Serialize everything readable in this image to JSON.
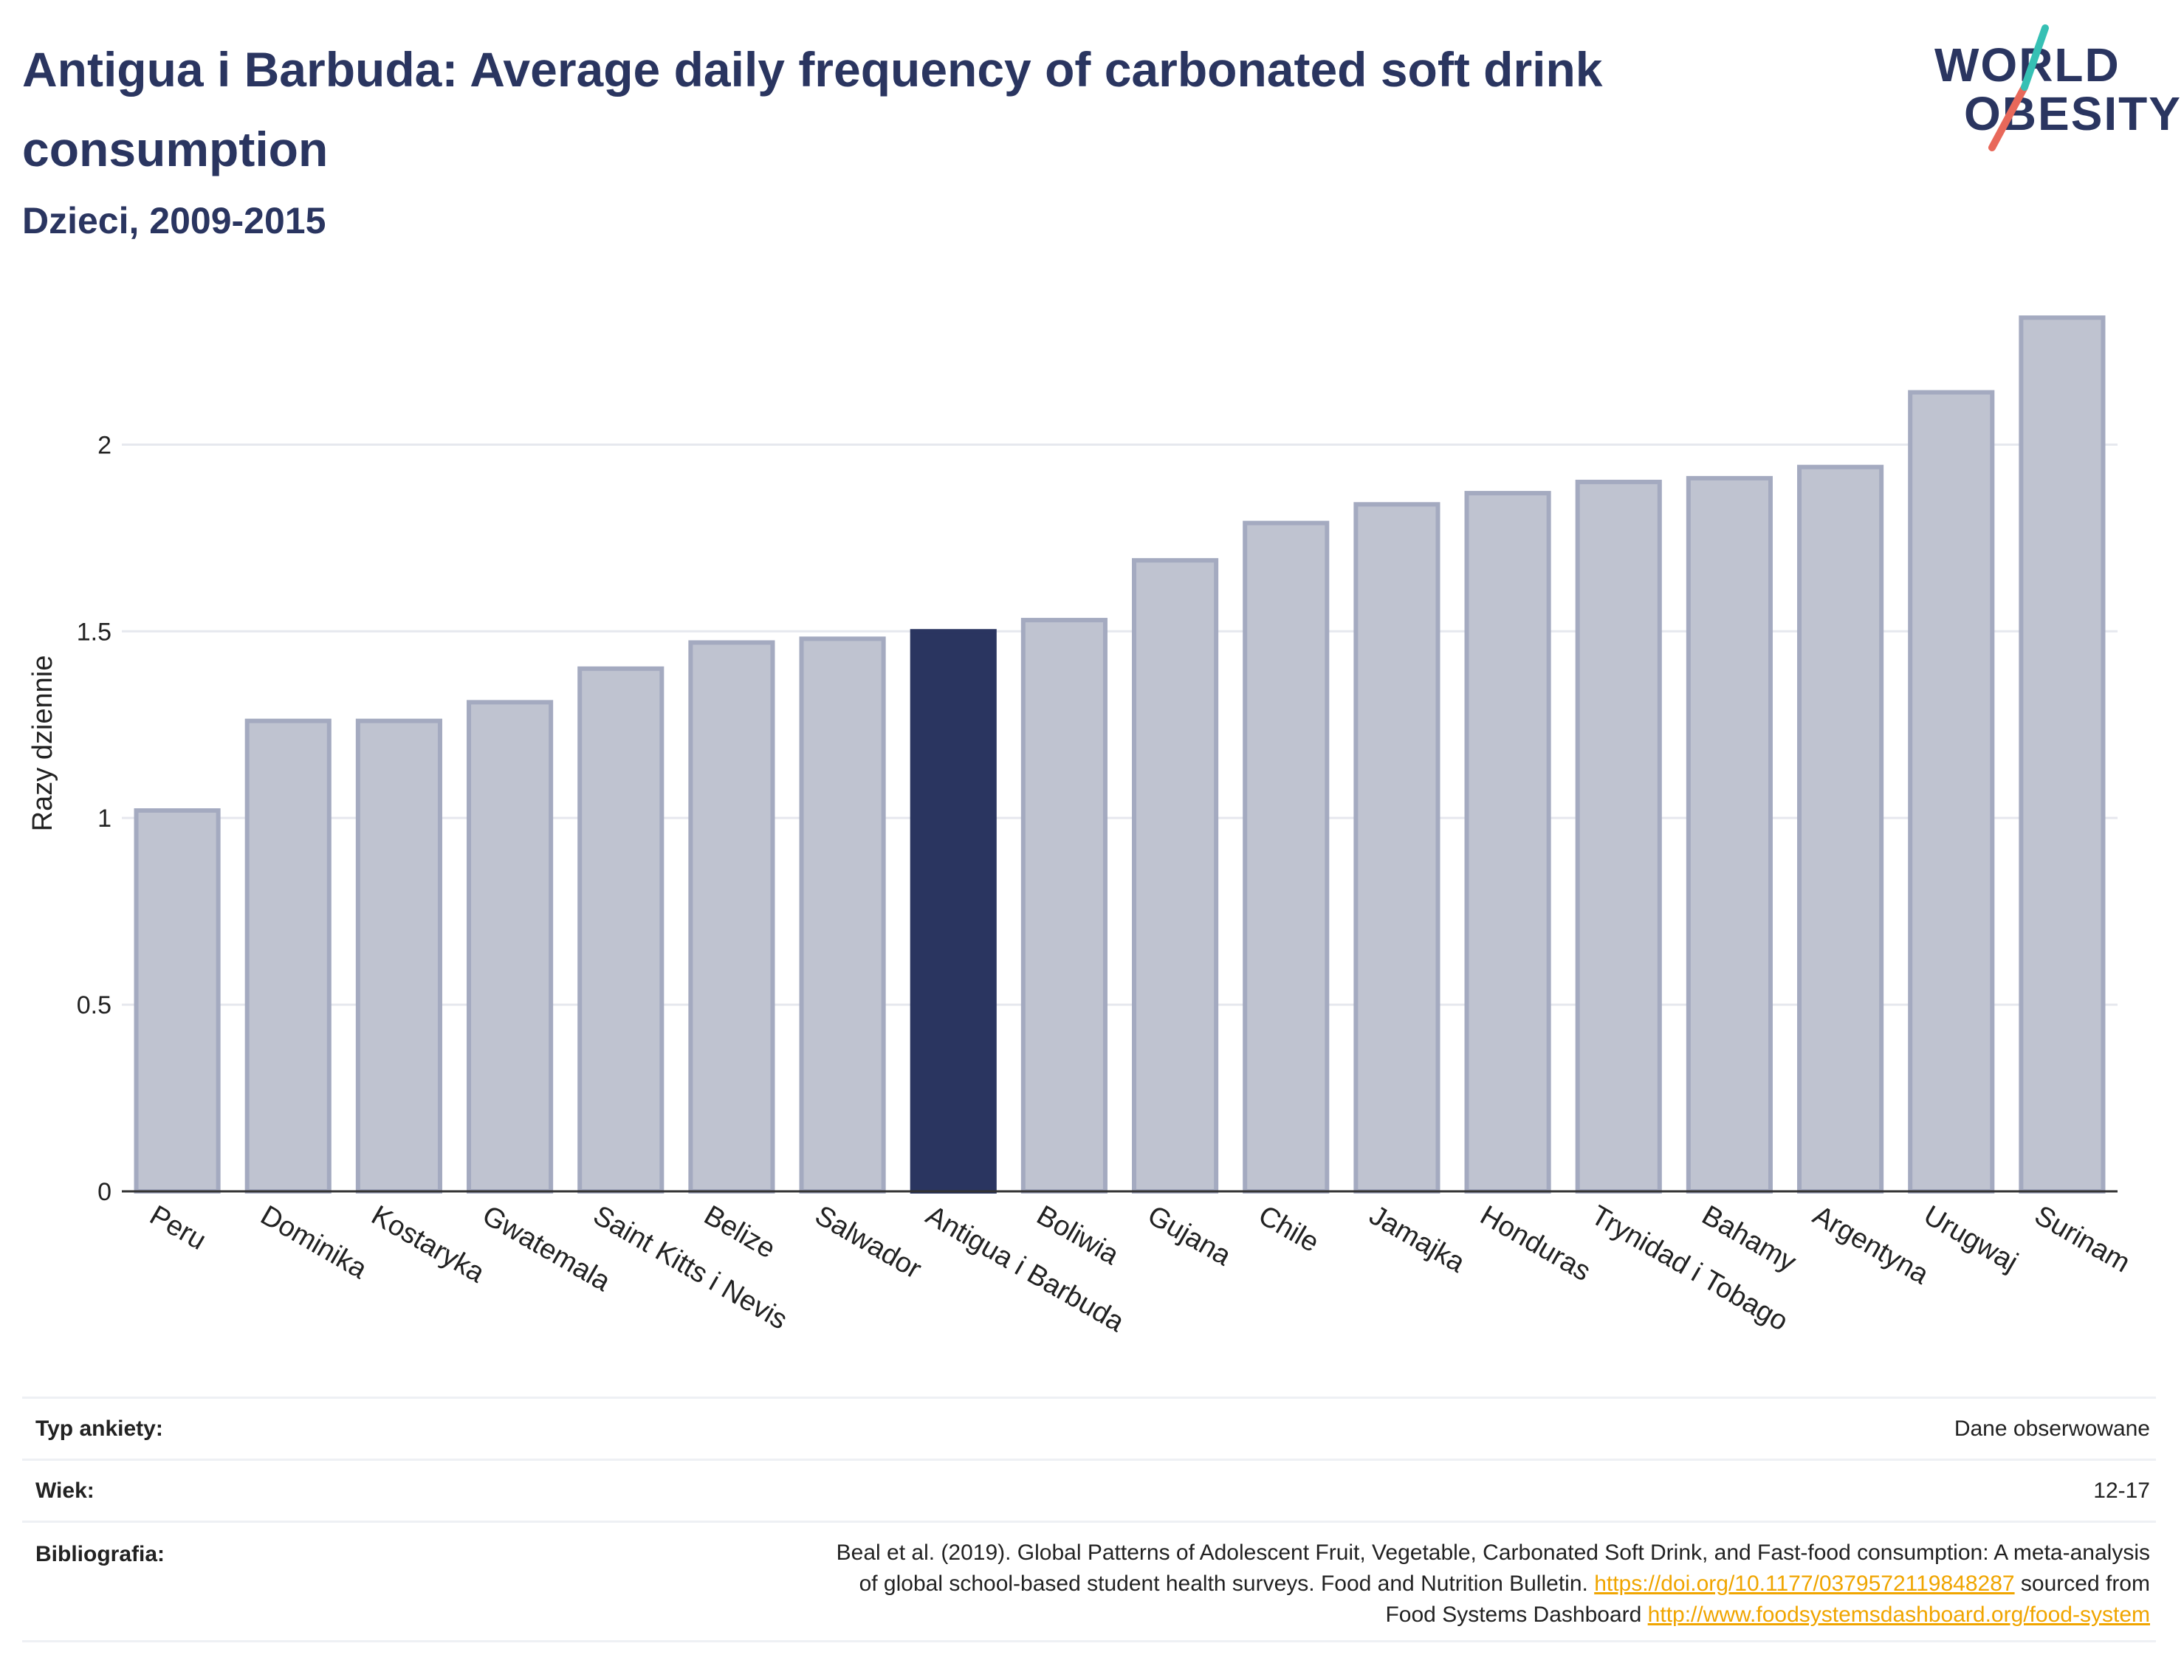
{
  "header": {
    "title": "Antigua i Barbuda: Average daily frequency of carbonated soft drink consumption",
    "subtitle": "Dzieci, 2009-2015"
  },
  "logo": {
    "line1": "WORLD",
    "line2": "OBESITY"
  },
  "chart_data": {
    "type": "bar",
    "ylabel": "Razy dziennie",
    "ylim": [
      0,
      2.4
    ],
    "yticks": [
      "0",
      "0.5",
      "1",
      "1.5",
      "2"
    ],
    "ytick_values": [
      0,
      0.5,
      1,
      1.5,
      2
    ],
    "grid": true,
    "highlight": "Antigua i Barbuda",
    "categories": [
      "Peru",
      "Dominika",
      "Kostaryka",
      "Gwatemala",
      "Saint Kitts i Nevis",
      "Belize",
      "Salwador",
      "Antigua i Barbuda",
      "Boliwia",
      "Gujana",
      "Chile",
      "Jamajka",
      "Honduras",
      "Trynidad i Tobago",
      "Bahamy",
      "Argentyna",
      "Urugwaj",
      "Surinam"
    ],
    "values": [
      1.02,
      1.26,
      1.26,
      1.31,
      1.4,
      1.47,
      1.48,
      1.5,
      1.53,
      1.69,
      1.79,
      1.84,
      1.87,
      1.9,
      1.91,
      1.94,
      2.14,
      2.34
    ],
    "colors": {
      "default": "#bfc3d0",
      "default_border": "#a4aac0",
      "highlight": "#2a3560"
    }
  },
  "meta": {
    "survey_label": "Typ ankiety:",
    "survey_value": "Dane obserwowane",
    "age_label": "Wiek:",
    "age_value": "12-17",
    "bib_label": "Bibliografia:",
    "bib_line1": "Beal et al. (2019). Global Patterns of Adolescent Fruit, Vegetable, Carbonated Soft Drink, and Fast-food consumption: A meta-analysis",
    "bib_line2_text": "of global school-based student health surveys. Food and Nutrition Bulletin.",
    "bib_link1": "https://doi.org/10.1177/0379572119848287",
    "bib_line2_after": "sourced from",
    "bib_line3_text": "Food Systems Dashboard",
    "bib_link2": "http://www.foodsystemsdashboard.org/food-system"
  }
}
